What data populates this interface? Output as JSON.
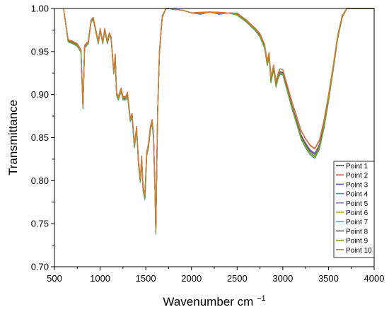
{
  "chart_data": {
    "type": "line",
    "title": "",
    "xlabel": "Wavenumber cm",
    "xlabel_superscript": "−1",
    "ylabel": "Transmittance",
    "xlim": [
      500,
      4000
    ],
    "ylim": [
      0.7,
      1.0
    ],
    "x_ticks": [
      "500",
      "1000",
      "1500",
      "2000",
      "2500",
      "3000",
      "3500",
      "4000"
    ],
    "y_ticks": [
      "0.70",
      "0.75",
      "0.80",
      "0.85",
      "0.90",
      "0.95",
      "1.00"
    ],
    "grid": false,
    "legend_position": "bottom-right",
    "base_curve": {
      "x": [
        600,
        650,
        700,
        750,
        790,
        812,
        830,
        870,
        900,
        925,
        950,
        980,
        1000,
        1030,
        1050,
        1080,
        1100,
        1120,
        1150,
        1165,
        1180,
        1200,
        1230,
        1250,
        1280,
        1300,
        1330,
        1350,
        1375,
        1400,
        1420,
        1440,
        1455,
        1470,
        1490,
        1510,
        1530,
        1550,
        1570,
        1585,
        1600,
        1610,
        1630,
        1650,
        1680,
        1720,
        1750,
        1800,
        1900,
        2000,
        2100,
        2200,
        2300,
        2400,
        2500,
        2600,
        2700,
        2750,
        2800,
        2830,
        2850,
        2870,
        2900,
        2925,
        2950,
        2970,
        3000,
        3050,
        3100,
        3150,
        3200,
        3250,
        3300,
        3350,
        3400,
        3450,
        3500,
        3550,
        3600,
        3650,
        3700,
        3800,
        3900,
        4000
      ],
      "y": [
        1.0,
        0.962,
        0.96,
        0.957,
        0.95,
        0.885,
        0.955,
        0.96,
        0.985,
        0.988,
        0.975,
        0.96,
        0.975,
        0.96,
        0.975,
        0.96,
        0.97,
        0.965,
        0.925,
        0.945,
        0.9,
        0.895,
        0.905,
        0.895,
        0.895,
        0.9,
        0.87,
        0.875,
        0.84,
        0.86,
        0.82,
        0.8,
        0.825,
        0.79,
        0.78,
        0.83,
        0.84,
        0.86,
        0.868,
        0.85,
        0.79,
        0.74,
        0.88,
        0.95,
        0.99,
        1.0,
        1.0,
        0.999,
        0.998,
        0.995,
        0.994,
        0.996,
        0.994,
        0.995,
        0.993,
        0.985,
        0.975,
        0.968,
        0.955,
        0.935,
        0.945,
        0.915,
        0.93,
        0.91,
        0.92,
        0.925,
        0.924,
        0.905,
        0.885,
        0.868,
        0.85,
        0.84,
        0.832,
        0.828,
        0.838,
        0.862,
        0.893,
        0.928,
        0.965,
        0.99,
        1.0,
        1.0,
        1.0,
        1.0
      ]
    },
    "series": [
      {
        "name": "Point 1",
        "color": "#4a4a4a",
        "offset": 0.0,
        "band_shift": 0.0
      },
      {
        "name": "Point 2",
        "color": "#c0504d",
        "offset": 0.008,
        "band_shift": 0.03
      },
      {
        "name": "Point 3",
        "color": "#4f5fd0",
        "offset": -0.002,
        "band_shift": 0.018
      },
      {
        "name": "Point 4",
        "color": "#2f9e8f",
        "offset": -0.004,
        "band_shift": -0.005
      },
      {
        "name": "Point 5",
        "color": "#9b6fd6",
        "offset": 0.003,
        "band_shift": 0.012
      },
      {
        "name": "Point 6",
        "color": "#c9a227",
        "offset": 0.001,
        "band_shift": -0.003
      },
      {
        "name": "Point 7",
        "color": "#3fb7c9",
        "offset": -0.003,
        "band_shift": 0.005
      },
      {
        "name": "Point 8",
        "color": "#555555",
        "offset": 0.002,
        "band_shift": 0.008
      },
      {
        "name": "Point 9",
        "color": "#8a9a1b",
        "offset": -0.001,
        "band_shift": 0.002
      },
      {
        "name": "Point 10",
        "color": "#d87c32",
        "offset": 0.006,
        "band_shift": 0.035
      }
    ]
  }
}
